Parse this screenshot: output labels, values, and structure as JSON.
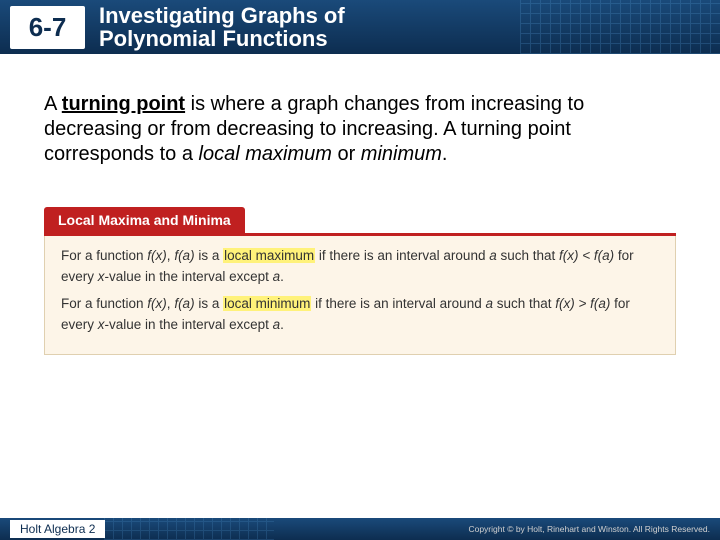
{
  "header": {
    "lesson_number": "6-7",
    "title_line1": "Investigating Graphs of",
    "title_line2": "Polynomial Functions",
    "bar_gradient_top": "#1a4a7a",
    "bar_gradient_bottom": "#0d2d50"
  },
  "paragraph": {
    "pre": "A ",
    "term": "turning point",
    "mid": " is where a graph changes from increasing to decreasing or from decreasing to increasing. A turning point corresponds to a ",
    "ital1": "local maximum",
    "or": " or ",
    "ital2": "minimum",
    "end": "."
  },
  "definition": {
    "tab_label": "Local Maxima and Minima",
    "tab_bg": "#c02020",
    "content_bg": "#fdf5e8",
    "line1": {
      "a": "For a function ",
      "fx": "f(x)",
      "b": ", ",
      "fa": "f(a)",
      "c": " is a ",
      "hl": "local maximum",
      "d": " if there is an interval around ",
      "var_a": "a",
      "e": " such that ",
      "ineq": "f(x) < f(a)",
      "f": " for every ",
      "xv": "x",
      "g": "-value in the interval except ",
      "var_a2": "a",
      "h": "."
    },
    "line2": {
      "a": "For a function ",
      "fx": "f(x)",
      "b": ", ",
      "fa": "f(a)",
      "c": " is a ",
      "hl": "local minimum",
      "d": " if there is an interval around ",
      "var_a": "a",
      "e": " such that ",
      "ineq": "f(x) > f(a)",
      "f": " for every ",
      "xv": "x",
      "g": "-value in the interval except ",
      "var_a2": "a",
      "h": "."
    }
  },
  "footer": {
    "book": "Holt Algebra 2",
    "copyright": "Copyright © by Holt, Rinehart and Winston. All Rights Reserved."
  }
}
